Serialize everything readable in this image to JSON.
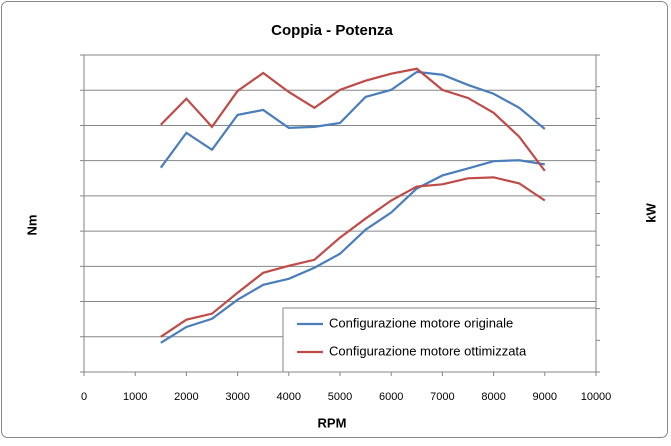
{
  "chart_data": {
    "type": "line",
    "title": "Coppia - Potenza",
    "x_label": "RPM",
    "y_label": "Nm",
    "y2_label": "kW",
    "x": [
      1500,
      2000,
      2500,
      3000,
      3500,
      4000,
      4500,
      5000,
      5500,
      6000,
      6500,
      7000,
      7500,
      8000,
      8500,
      9000
    ],
    "series": [
      {
        "name": "Configurazione motore originale",
        "color": "#4a7ebb",
        "values": [
          5.8,
          6.79,
          6.31,
          7.3,
          7.44,
          6.93,
          6.96,
          7.07,
          7.81,
          8.01,
          8.52,
          8.44,
          8.15,
          7.9,
          7.5,
          6.9
        ],
        "values_y2": [
          0.92,
          1.42,
          1.68,
          2.28,
          2.75,
          2.94,
          3.29,
          3.73,
          4.49,
          5.03,
          5.79,
          6.2,
          6.42,
          6.65,
          6.68,
          6.55
        ]
      },
      {
        "name": "Configurazione motore ottimizzata",
        "color": "#be4b48",
        "values": [
          7.02,
          7.76,
          6.96,
          7.98,
          8.49,
          7.95,
          7.5,
          8.01,
          8.27,
          8.47,
          8.61,
          8.01,
          7.78,
          7.36,
          6.68,
          5.71
        ],
        "values_y2": [
          1.11,
          1.65,
          1.84,
          2.5,
          3.13,
          3.35,
          3.54,
          4.24,
          4.84,
          5.41,
          5.85,
          5.92,
          6.11,
          6.14,
          5.95,
          5.41
        ]
      }
    ],
    "xlim": [
      0,
      10000
    ],
    "xticks": [
      0,
      1000,
      2000,
      3000,
      4000,
      5000,
      6000,
      7000,
      8000,
      9000,
      10000
    ],
    "ylim": [
      0,
      9
    ],
    "yticks": [
      0,
      1,
      2,
      3,
      4,
      5,
      6,
      7,
      8,
      9
    ],
    "y2lim": [
      0,
      10
    ],
    "y2ticks": [
      0,
      1,
      2,
      3,
      4,
      5,
      6,
      7,
      8,
      9,
      10
    ],
    "grid": true,
    "legend": "lower right"
  }
}
